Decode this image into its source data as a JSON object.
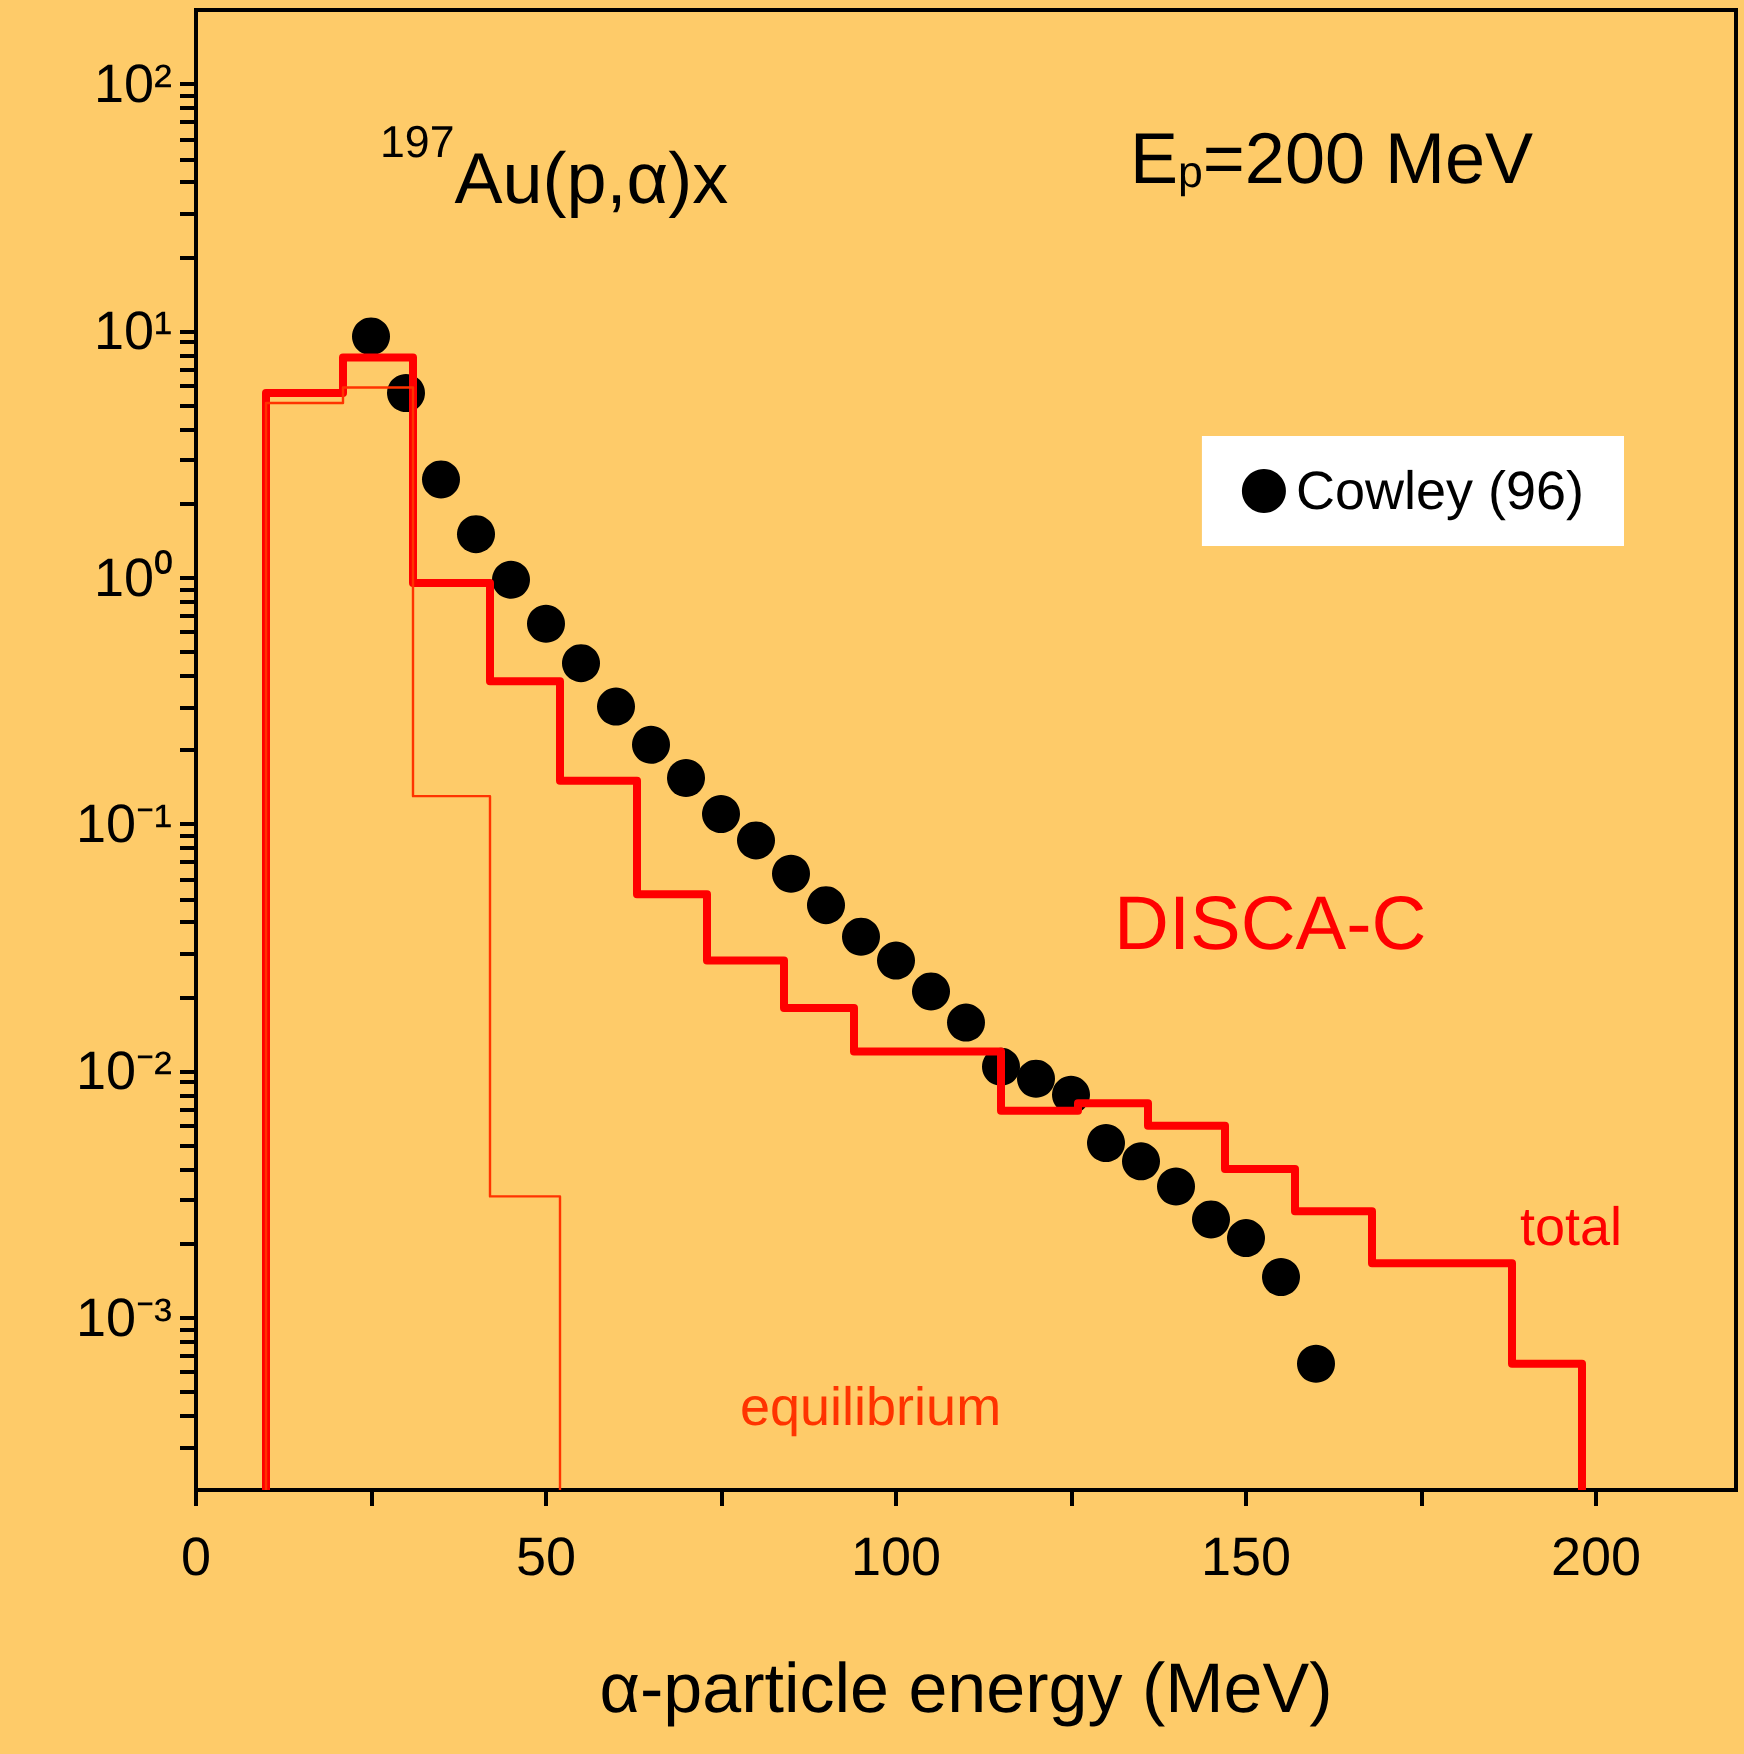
{
  "chart_data": {
    "type": "scatter",
    "xlabel": "α-particle energy (MeV)",
    "annotations": [
      "$^{197}$Au(p,α)x",
      "E$_{p}$=200 MeV",
      "DISCA-C"
    ],
    "xlim": [
      0,
      220
    ],
    "xticks": [
      0,
      {
        "value": 25,
        "label": null
      },
      50,
      {
        "value": 75,
        "label": null
      },
      100,
      {
        "value": 125,
        "label": null
      },
      150,
      {
        "value": 175,
        "label": null
      },
      200
    ],
    "ylim": [
      0.0002,
      200
    ],
    "log": true,
    "yticks": [
      {
        "value": 0.0003,
        "label": null
      },
      {
        "value": 0.0004,
        "label": null
      },
      {
        "value": 0.0005,
        "label": null
      },
      {
        "value": 0.0006,
        "label": null
      },
      {
        "value": 0.0007,
        "label": null
      },
      {
        "value": 0.0008,
        "label": null
      },
      {
        "value": 0.0009,
        "label": null
      },
      {
        "value": 0.001,
        "label": "10⁻³"
      },
      {
        "value": 0.002,
        "label": null
      },
      {
        "value": 0.003,
        "label": null
      },
      {
        "value": 0.004,
        "label": null
      },
      {
        "value": 0.005,
        "label": null
      },
      {
        "value": 0.006,
        "label": null
      },
      {
        "value": 0.007,
        "label": null
      },
      {
        "value": 0.008,
        "label": null
      },
      {
        "value": 0.009,
        "label": null
      },
      {
        "value": 0.01,
        "label": "10⁻²"
      },
      {
        "value": 0.02,
        "label": null
      },
      {
        "value": 0.03,
        "label": null
      },
      {
        "value": 0.04,
        "label": null
      },
      {
        "value": 0.05,
        "label": null
      },
      {
        "value": 0.06,
        "label": null
      },
      {
        "value": 0.07,
        "label": null
      },
      {
        "value": 0.08,
        "label": null
      },
      {
        "value": 0.09,
        "label": null
      },
      {
        "value": 0.1,
        "label": "10⁻¹"
      },
      {
        "value": 0.2,
        "label": null
      },
      {
        "value": 0.3,
        "label": null
      },
      {
        "value": 0.4,
        "label": null
      },
      {
        "value": 0.5,
        "label": null
      },
      {
        "value": 0.6,
        "label": null
      },
      {
        "value": 0.7,
        "label": null
      },
      {
        "value": 0.8,
        "label": null
      },
      {
        "value": 0.9,
        "label": null
      },
      {
        "value": 1,
        "label": "10⁰"
      },
      {
        "value": 2,
        "label": null
      },
      {
        "value": 3,
        "label": null
      },
      {
        "value": 4,
        "label": null
      },
      {
        "value": 5,
        "label": null
      },
      {
        "value": 6,
        "label": null
      },
      {
        "value": 7,
        "label": null
      },
      {
        "value": 8,
        "label": null
      },
      {
        "value": 9,
        "label": null
      },
      {
        "value": 10,
        "label": "10¹"
      },
      {
        "value": 20,
        "label": null
      },
      {
        "value": 30,
        "label": null
      },
      {
        "value": 40,
        "label": null
      },
      {
        "value": 50,
        "label": null
      },
      {
        "value": 60,
        "label": null
      },
      {
        "value": 70,
        "label": null
      },
      {
        "value": 80,
        "label": null
      },
      {
        "value": 90,
        "label": null
      },
      {
        "value": 100,
        "label": "10²"
      }
    ],
    "grid": false,
    "legend": "top right",
    "marker": "circle",
    "series": [
      {
        "type": "histogram",
        "name": "total",
        "color": "#ff0000",
        "bins": [
          10,
          21,
          31,
          42,
          52,
          63,
          73,
          84,
          94,
          105,
          115,
          126,
          136,
          147,
          157,
          168,
          188,
          198
        ],
        "values": [
          5.6,
          7.8,
          0.95,
          0.38,
          0.15,
          0.052,
          0.028,
          0.018,
          0.012,
          0.012,
          0.0069,
          0.0074,
          0.006,
          0.004,
          0.0027,
          0.00166,
          0.00065
        ]
      },
      {
        "type": "histogram",
        "name": "equilibrium",
        "color": "#ff3300",
        "bins": [
          10,
          21,
          31,
          42,
          52
        ],
        "values": [
          5.1,
          5.9,
          0.13,
          0.0031
        ]
      },
      {
        "type": "scatter",
        "name": "Cowley (96)",
        "color": "#000000",
        "x": [
          25,
          30,
          35,
          40,
          45,
          50,
          55,
          60,
          65,
          70,
          75,
          80,
          85,
          90,
          95,
          100,
          105,
          110,
          115,
          120,
          125,
          130,
          135,
          140,
          145,
          150,
          155,
          160
        ],
        "values": [
          9.5,
          5.6,
          2.5,
          1.5,
          0.98,
          0.65,
          0.45,
          0.3,
          0.21,
          0.154,
          0.11,
          0.086,
          0.063,
          0.047,
          0.035,
          0.028,
          0.021,
          0.0157,
          0.0104,
          0.0093,
          0.008,
          0.0051,
          0.0043,
          0.0034,
          0.0025,
          0.0021,
          0.00146,
          0.00065
        ]
      }
    ]
  }
}
